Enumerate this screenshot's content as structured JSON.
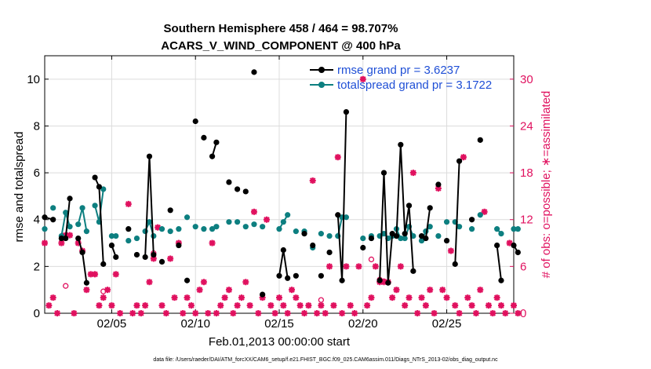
{
  "chart_data": {
    "type": "line",
    "title": "Southern Hemisphere 458 / 464 = 98.707%",
    "subtitle": "ACARS_V_WIND_COMPONENT @ 400 hPa",
    "xlabel": "Feb.01,2013 00:00:00 start",
    "ylabel_left": "rmse and totalspread",
    "ylabel_right": "# of obs: o=possible; ∗=assimilated",
    "footnote": "data file: /Users/raeder/DAI/ATM_forcXX/CAM6_setup/f.e21.FHIST_BGC.f09_025.CAM6assim.011/Diags_NTrS_2013-02/obs_diag_output.nc",
    "x_ticks": [
      {
        "day": 5,
        "label": "02/05"
      },
      {
        "day": 10,
        "label": "02/10"
      },
      {
        "day": 15,
        "label": "02/15"
      },
      {
        "day": 20,
        "label": "02/20"
      },
      {
        "day": 25,
        "label": "02/25"
      }
    ],
    "y_left_ticks": [
      "0",
      "2",
      "4",
      "6",
      "8",
      "10"
    ],
    "y_right_ticks": [
      "0",
      "6",
      "12",
      "18",
      "24",
      "30"
    ],
    "xlim": [
      1,
      29
    ],
    "ylim_left": [
      0,
      11
    ],
    "ylim_right": [
      0,
      33
    ],
    "grid": true,
    "legend_position": "top-right",
    "colors": {
      "rmse": "#000000",
      "spread": "#0d7f80",
      "obs": "#e0115f",
      "right_axis": "#e0115f",
      "legend_text": "#1f4fd6"
    },
    "series": [
      {
        "name": "rmse grand pr = 3.6237",
        "key": "rmse",
        "color": "#000000",
        "segments": [
          [
            [
              1.0,
              4.1
            ],
            [
              1.5,
              4.0
            ]
          ],
          [
            [
              2.0,
              3.2
            ],
            [
              2.25,
              3.2
            ],
            [
              2.5,
              4.9
            ]
          ],
          [
            [
              3.0,
              3.2
            ],
            [
              3.25,
              2.6
            ],
            [
              3.5,
              1.3
            ]
          ],
          [
            [
              4.0,
              5.8
            ],
            [
              4.25,
              5.4
            ],
            [
              4.5,
              2.1
            ]
          ],
          [
            [
              5.0,
              2.9
            ],
            [
              5.25,
              2.4
            ]
          ],
          [
            [
              6.0,
              3.6
            ]
          ],
          [
            [
              6.5,
              2.5
            ]
          ],
          [
            [
              7.0,
              2.4
            ],
            [
              7.25,
              6.7
            ],
            [
              7.5,
              2.5
            ]
          ],
          [
            [
              8.0,
              2.2
            ]
          ],
          [
            [
              8.5,
              4.4
            ]
          ],
          [
            [
              9.0,
              2.9
            ]
          ],
          [
            [
              9.5,
              1.4
            ]
          ],
          [
            [
              10.0,
              8.2
            ]
          ],
          [
            [
              10.5,
              7.5
            ]
          ],
          [
            [
              11.0,
              6.7
            ],
            [
              11.25,
              7.3
            ]
          ],
          [
            [
              12.0,
              5.6
            ]
          ],
          [
            [
              12.5,
              5.3
            ]
          ],
          [
            [
              13.0,
              5.2
            ]
          ],
          [
            [
              13.5,
              10.3
            ]
          ],
          [
            [
              14.0,
              0.8
            ]
          ],
          [
            [
              15.0,
              1.6
            ],
            [
              15.25,
              2.7
            ],
            [
              15.5,
              1.5
            ]
          ],
          [
            [
              16.0,
              1.6
            ]
          ],
          [
            [
              16.5,
              3.4
            ]
          ],
          [
            [
              17.0,
              2.9
            ]
          ],
          [
            [
              17.5,
              1.6
            ]
          ],
          [
            [
              18.0,
              2.6
            ]
          ],
          [
            [
              18.5,
              4.2
            ],
            [
              18.75,
              1.4
            ],
            [
              19.0,
              8.6
            ]
          ],
          [
            [
              20.0,
              2.8
            ]
          ],
          [
            [
              20.5,
              3.2
            ]
          ],
          [
            [
              21.0,
              1.4
            ],
            [
              21.25,
              6.0
            ],
            [
              21.5,
              1.3
            ],
            [
              21.75,
              3.4
            ]
          ],
          [
            [
              22.0,
              3.3
            ],
            [
              22.25,
              7.2
            ],
            [
              22.5,
              3.4
            ],
            [
              22.75,
              4.6
            ],
            [
              23.0,
              1.8
            ]
          ],
          [
            [
              23.5,
              3.3
            ],
            [
              23.75,
              3.2
            ],
            [
              24.0,
              4.5
            ]
          ],
          [
            [
              24.5,
              5.5
            ]
          ],
          [
            [
              25.0,
              3.1
            ]
          ],
          [
            [
              25.5,
              2.1
            ],
            [
              25.75,
              6.5
            ]
          ],
          [
            [
              26.5,
              4.0
            ]
          ],
          [
            [
              27.0,
              7.4
            ]
          ],
          [
            [
              28.0,
              2.9
            ],
            [
              28.25,
              1.4
            ]
          ],
          [
            [
              29.0,
              2.9
            ],
            [
              29.25,
              2.6
            ]
          ]
        ]
      },
      {
        "name": "totalspread grand pr = 3.1722",
        "key": "spread",
        "color": "#0d7f80",
        "segments": [
          [
            [
              1.0,
              3.6
            ]
          ],
          [
            [
              1.5,
              4.5
            ]
          ],
          [
            [
              2.0,
              3.3
            ],
            [
              2.25,
              4.3
            ],
            [
              2.5,
              3.7
            ]
          ],
          [
            [
              3.0,
              3.8
            ],
            [
              3.25,
              4.5
            ],
            [
              3.5,
              3.5
            ]
          ],
          [
            [
              4.0,
              4.6
            ],
            [
              4.25,
              3.9
            ],
            [
              4.5,
              5.3
            ]
          ],
          [
            [
              5.0,
              3.3
            ],
            [
              5.25,
              3.3
            ]
          ],
          [
            [
              6.0,
              3.1
            ]
          ],
          [
            [
              6.5,
              3.2
            ]
          ],
          [
            [
              7.0,
              3.5
            ],
            [
              7.25,
              3.9
            ],
            [
              7.5,
              3.3
            ]
          ],
          [
            [
              8.0,
              3.6
            ]
          ],
          [
            [
              8.5,
              3.5
            ]
          ],
          [
            [
              9.0,
              3.6
            ]
          ],
          [
            [
              9.5,
              4.1
            ]
          ],
          [
            [
              10.0,
              3.7
            ]
          ],
          [
            [
              10.5,
              3.6
            ]
          ],
          [
            [
              11.0,
              3.6
            ],
            [
              11.25,
              3.7
            ]
          ],
          [
            [
              12.0,
              3.9
            ]
          ],
          [
            [
              12.5,
              3.9
            ]
          ],
          [
            [
              13.0,
              3.7
            ]
          ],
          [
            [
              13.5,
              3.8
            ]
          ],
          [
            [
              14.0,
              3.7
            ]
          ],
          [
            [
              15.0,
              3.6
            ],
            [
              15.25,
              3.9
            ],
            [
              15.5,
              4.2
            ]
          ],
          [
            [
              16.0,
              3.5
            ]
          ],
          [
            [
              16.5,
              3.5
            ]
          ],
          [
            [
              17.0,
              2.8
            ]
          ],
          [
            [
              17.5,
              3.4
            ]
          ],
          [
            [
              18.0,
              3.3
            ]
          ],
          [
            [
              18.5,
              3.3
            ],
            [
              18.75,
              4.1
            ],
            [
              19.0,
              4.1
            ]
          ],
          [
            [
              20.0,
              3.2
            ]
          ],
          [
            [
              20.5,
              3.3
            ]
          ],
          [
            [
              21.0,
              3.3
            ],
            [
              21.25,
              3.4
            ],
            [
              21.5,
              3.2
            ],
            [
              21.75,
              3.3
            ]
          ],
          [
            [
              22.0,
              3.6
            ],
            [
              22.25,
              3.2
            ],
            [
              22.5,
              3.2
            ],
            [
              22.75,
              3.7
            ],
            [
              23.0,
              3.3
            ]
          ],
          [
            [
              23.5,
              3.1
            ],
            [
              23.75,
              3.5
            ],
            [
              24.0,
              3.7
            ]
          ],
          [
            [
              24.5,
              3.3
            ]
          ],
          [
            [
              25.0,
              3.9
            ]
          ],
          [
            [
              25.5,
              3.9
            ],
            [
              25.75,
              3.7
            ]
          ],
          [
            [
              26.5,
              3.6
            ]
          ],
          [
            [
              27.0,
              4.2
            ]
          ],
          [
            [
              28.0,
              3.6
            ],
            [
              28.25,
              3.4
            ]
          ],
          [
            [
              29.0,
              3.6
            ],
            [
              29.25,
              3.6
            ]
          ]
        ]
      }
    ],
    "obs_assimilated": [
      [
        1.0,
        9
      ],
      [
        1.25,
        1
      ],
      [
        1.5,
        2
      ],
      [
        1.75,
        0
      ],
      [
        2.0,
        9
      ],
      [
        2.25,
        10
      ],
      [
        2.5,
        10
      ],
      [
        2.75,
        0
      ],
      [
        3.0,
        9
      ],
      [
        3.25,
        8
      ],
      [
        3.5,
        3
      ],
      [
        3.75,
        5
      ],
      [
        4.0,
        5
      ],
      [
        4.25,
        1
      ],
      [
        4.5,
        2
      ],
      [
        4.75,
        3
      ],
      [
        5.0,
        1
      ],
      [
        5.25,
        5
      ],
      [
        5.5,
        0
      ],
      [
        6.0,
        14
      ],
      [
        6.25,
        0
      ],
      [
        6.5,
        1
      ],
      [
        6.75,
        0
      ],
      [
        7.0,
        1
      ],
      [
        7.25,
        4
      ],
      [
        7.5,
        7
      ],
      [
        7.75,
        11
      ],
      [
        8.0,
        1
      ],
      [
        8.25,
        0
      ],
      [
        8.5,
        7
      ],
      [
        8.75,
        2
      ],
      [
        9.0,
        9
      ],
      [
        9.25,
        0
      ],
      [
        9.5,
        2
      ],
      [
        9.75,
        1
      ],
      [
        10.0,
        0
      ],
      [
        10.25,
        3
      ],
      [
        10.5,
        4
      ],
      [
        10.75,
        0
      ],
      [
        11.0,
        9
      ],
      [
        11.25,
        0
      ],
      [
        11.5,
        1
      ],
      [
        11.75,
        2
      ],
      [
        12.0,
        3
      ],
      [
        12.25,
        0
      ],
      [
        12.5,
        1
      ],
      [
        12.75,
        2
      ],
      [
        13.0,
        4
      ],
      [
        13.25,
        1
      ],
      [
        13.5,
        13
      ],
      [
        13.75,
        0
      ],
      [
        14.0,
        2
      ],
      [
        14.25,
        12
      ],
      [
        14.5,
        1
      ],
      [
        14.75,
        0
      ],
      [
        15.0,
        2
      ],
      [
        15.25,
        1
      ],
      [
        15.5,
        0
      ],
      [
        15.75,
        3
      ],
      [
        16.0,
        2
      ],
      [
        16.25,
        1
      ],
      [
        16.5,
        0
      ],
      [
        16.75,
        1
      ],
      [
        17.0,
        17
      ],
      [
        17.25,
        0
      ],
      [
        17.5,
        1
      ],
      [
        17.75,
        0
      ],
      [
        18.0,
        6
      ],
      [
        18.25,
        1
      ],
      [
        18.5,
        20
      ],
      [
        18.75,
        0
      ],
      [
        19.0,
        6
      ],
      [
        19.25,
        1
      ],
      [
        19.5,
        0
      ],
      [
        19.75,
        6
      ],
      [
        20.0,
        30
      ],
      [
        20.25,
        1
      ],
      [
        20.5,
        2
      ],
      [
        20.75,
        6
      ],
      [
        21.0,
        4
      ],
      [
        21.25,
        4
      ],
      [
        21.5,
        4
      ],
      [
        21.75,
        2
      ],
      [
        22.0,
        3
      ],
      [
        22.25,
        6
      ],
      [
        22.5,
        1
      ],
      [
        22.75,
        2
      ],
      [
        23.0,
        18
      ],
      [
        23.25,
        0
      ],
      [
        23.5,
        2
      ],
      [
        23.75,
        1
      ],
      [
        24.0,
        3
      ],
      [
        24.25,
        0
      ],
      [
        24.5,
        16
      ],
      [
        24.75,
        3
      ],
      [
        25.0,
        2
      ],
      [
        25.25,
        8
      ],
      [
        25.5,
        1
      ],
      [
        25.75,
        0
      ],
      [
        26.0,
        20
      ],
      [
        26.25,
        2
      ],
      [
        26.5,
        1
      ],
      [
        26.75,
        0
      ],
      [
        27.0,
        3
      ],
      [
        27.25,
        13
      ],
      [
        27.5,
        1
      ],
      [
        27.75,
        0
      ],
      [
        28.0,
        2
      ],
      [
        28.25,
        1
      ],
      [
        28.5,
        0
      ],
      [
        28.75,
        9
      ],
      [
        29.0,
        1
      ],
      [
        29.25,
        0
      ]
    ],
    "obs_possible_extra": [
      [
        2.25,
        3.5
      ],
      [
        4.5,
        2.8
      ],
      [
        7.5,
        7.7
      ],
      [
        17.5,
        1.7
      ],
      [
        20.5,
        6.9
      ],
      [
        21.0,
        4.3
      ],
      [
        21.25,
        4.1
      ]
    ]
  }
}
